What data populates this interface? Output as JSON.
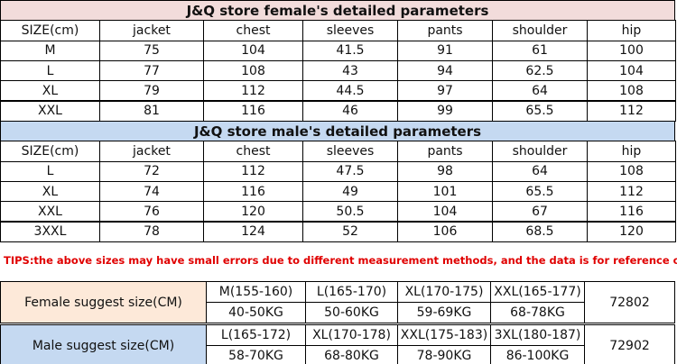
{
  "female": {
    "title": "J&Q store female's detailed parameters",
    "header": [
      "SIZE(cm)",
      "jacket",
      "chest",
      "sleeves",
      "pants",
      "shoulder",
      "hip"
    ],
    "rows": [
      [
        "M",
        "75",
        "104",
        "41.5",
        "91",
        "61",
        "100"
      ],
      [
        "L",
        "77",
        "108",
        "43",
        "94",
        "62.5",
        "104"
      ],
      [
        "XL",
        "79",
        "112",
        "44.5",
        "97",
        "64",
        "108"
      ],
      [
        "XXL",
        "81",
        "116",
        "46",
        "99",
        "65.5",
        "112"
      ]
    ]
  },
  "male": {
    "title": "J&Q store male's detailed parameters",
    "header": [
      "SIZE(cm)",
      "jacket",
      "chest",
      "sleeves",
      "pants",
      "shoulder",
      "hip"
    ],
    "rows": [
      [
        "L",
        "72",
        "112",
        "47.5",
        "98",
        "64",
        "108"
      ],
      [
        "XL",
        "74",
        "116",
        "49",
        "101",
        "65.5",
        "112"
      ],
      [
        "XXL",
        "76",
        "120",
        "50.5",
        "104",
        "67",
        "116"
      ],
      [
        "3XXL",
        "78",
        "124",
        "52",
        "106",
        "68.5",
        "120"
      ]
    ]
  },
  "tips": "TIPS:the above sizes may have small errors due to different measurement methods, and the data is for reference only.",
  "suggest": [
    {
      "label": "Female suggest size(CM)",
      "sizes": [
        "M(155-160)",
        "L(165-170)",
        "XL(170-175)",
        "XXL(165-177)"
      ],
      "weights": [
        "40-50KG",
        "50-60KG",
        "59-69KG",
        "68-78KG"
      ],
      "code": "72802"
    },
    {
      "label": "Male suggest size(CM)",
      "sizes": [
        "L(165-172)",
        "XL(170-178)",
        "XXL(175-183)",
        "3XL(180-187)"
      ],
      "weights": [
        "58-70KG",
        "68-80KG",
        "78-90KG",
        "86-100KG"
      ],
      "code": "72902"
    }
  ]
}
